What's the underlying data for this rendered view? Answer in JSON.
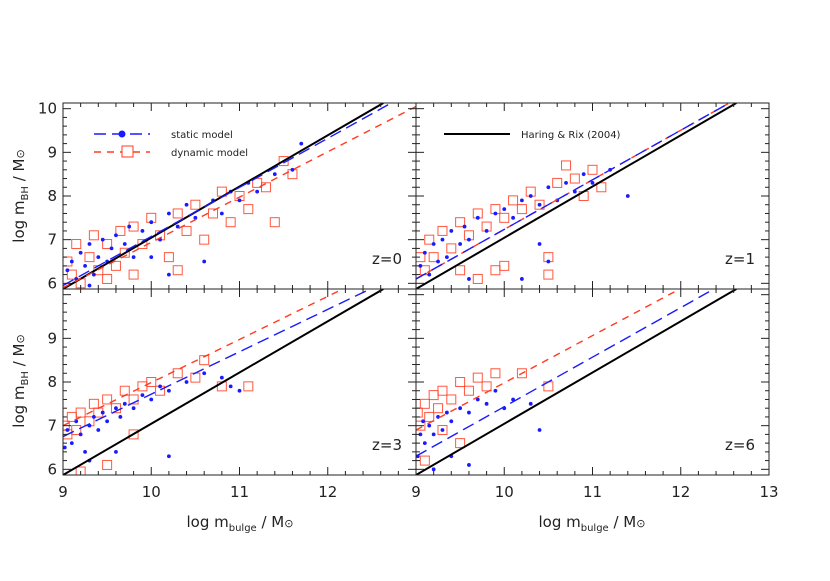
{
  "chart_data": {
    "type": "scatter",
    "xlabel": {
      "main": "log m",
      "sub": "bulge",
      "tail": " / M",
      "sun": "⊙"
    },
    "ylabel": {
      "main": "log m",
      "sub": "BH",
      "tail": " / M",
      "sun": "⊙"
    },
    "xlim": [
      9,
      13
    ],
    "ylim": [
      5.87,
      10.13
    ],
    "x_ticks": [
      9,
      10,
      11,
      12,
      13
    ],
    "y_ticks": [
      6,
      7,
      8,
      9,
      10
    ],
    "grid": false,
    "colors": {
      "static": "#1a1aff",
      "dynamic": "#ff3b1f",
      "reference": "#000000"
    },
    "legend": {
      "static": "static model",
      "dynamic": "dynamic model",
      "reference": "Haring & Rix (2004)"
    },
    "reference_line": {
      "x": [
        9,
        12.63
      ],
      "y": [
        5.87,
        10.13
      ]
    },
    "panels": [
      {
        "label": "z=0",
        "static_fit": {
          "x": [
            9,
            12.72
          ],
          "y": [
            5.95,
            10.13
          ]
        },
        "dynamic_fit": {
          "x": [
            9,
            13.0
          ],
          "y": [
            5.9,
            10.05
          ]
        },
        "static": [
          [
            9.05,
            6.3
          ],
          [
            9.1,
            6.5
          ],
          [
            9.15,
            6.1
          ],
          [
            9.2,
            6.7
          ],
          [
            9.25,
            6.4
          ],
          [
            9.3,
            6.9
          ],
          [
            9.35,
            6.2
          ],
          [
            9.4,
            6.6
          ],
          [
            9.45,
            7.0
          ],
          [
            9.5,
            6.5
          ],
          [
            9.55,
            6.8
          ],
          [
            9.6,
            7.1
          ],
          [
            9.7,
            6.9
          ],
          [
            9.75,
            7.3
          ],
          [
            9.8,
            6.6
          ],
          [
            9.9,
            7.2
          ],
          [
            10.0,
            7.4
          ],
          [
            10.1,
            7.0
          ],
          [
            10.2,
            7.6
          ],
          [
            10.3,
            7.3
          ],
          [
            10.4,
            7.8
          ],
          [
            10.5,
            7.5
          ],
          [
            10.6,
            6.5
          ],
          [
            10.7,
            7.9
          ],
          [
            10.8,
            7.6
          ],
          [
            10.9,
            8.1
          ],
          [
            11.0,
            7.9
          ],
          [
            11.1,
            8.3
          ],
          [
            11.2,
            8.1
          ],
          [
            11.4,
            8.5
          ],
          [
            11.6,
            8.6
          ],
          [
            11.7,
            9.2
          ],
          [
            10.0,
            6.6
          ],
          [
            9.3,
            5.95
          ],
          [
            10.2,
            6.2
          ]
        ],
        "dynamic": [
          [
            9.05,
            6.5
          ],
          [
            9.1,
            6.2
          ],
          [
            9.15,
            6.9
          ],
          [
            9.2,
            6.0
          ],
          [
            9.3,
            6.6
          ],
          [
            9.35,
            7.1
          ],
          [
            9.4,
            6.3
          ],
          [
            9.5,
            6.9
          ],
          [
            9.6,
            6.4
          ],
          [
            9.65,
            7.2
          ],
          [
            9.7,
            6.7
          ],
          [
            9.8,
            7.3
          ],
          [
            9.9,
            6.9
          ],
          [
            10.0,
            7.5
          ],
          [
            10.1,
            7.1
          ],
          [
            10.2,
            6.6
          ],
          [
            10.3,
            7.6
          ],
          [
            10.4,
            7.2
          ],
          [
            10.5,
            7.8
          ],
          [
            10.6,
            7.0
          ],
          [
            10.7,
            7.6
          ],
          [
            10.8,
            8.1
          ],
          [
            10.9,
            7.4
          ],
          [
            11.0,
            8.0
          ],
          [
            11.1,
            7.7
          ],
          [
            11.2,
            8.3
          ],
          [
            11.3,
            8.2
          ],
          [
            11.4,
            7.4
          ],
          [
            11.5,
            8.8
          ],
          [
            11.6,
            8.5
          ],
          [
            9.8,
            6.2
          ],
          [
            10.3,
            6.3
          ],
          [
            9.5,
            6.1
          ]
        ]
      },
      {
        "label": "z=1",
        "static_fit": {
          "x": [
            9,
            12.55
          ],
          "y": [
            6.1,
            10.13
          ]
        },
        "dynamic_fit": {
          "x": [
            9,
            12.55
          ],
          "y": [
            6.1,
            10.13
          ]
        },
        "static": [
          [
            9.05,
            6.4
          ],
          [
            9.1,
            6.7
          ],
          [
            9.15,
            6.2
          ],
          [
            9.2,
            6.9
          ],
          [
            9.25,
            6.5
          ],
          [
            9.3,
            7.0
          ],
          [
            9.35,
            6.6
          ],
          [
            9.4,
            7.2
          ],
          [
            9.5,
            6.9
          ],
          [
            9.55,
            7.3
          ],
          [
            9.6,
            7.0
          ],
          [
            9.7,
            7.5
          ],
          [
            9.8,
            7.2
          ],
          [
            9.9,
            7.6
          ],
          [
            10.0,
            7.7
          ],
          [
            10.1,
            7.5
          ],
          [
            10.2,
            7.9
          ],
          [
            10.3,
            8.0
          ],
          [
            10.4,
            7.8
          ],
          [
            10.5,
            8.2
          ],
          [
            10.6,
            7.9
          ],
          [
            10.7,
            8.3
          ],
          [
            10.8,
            8.1
          ],
          [
            10.9,
            8.5
          ],
          [
            11.0,
            8.3
          ],
          [
            11.2,
            8.6
          ],
          [
            10.4,
            6.9
          ],
          [
            10.5,
            6.5
          ],
          [
            10.2,
            6.1
          ],
          [
            11.4,
            8.0
          ],
          [
            9.6,
            6.1
          ]
        ],
        "dynamic": [
          [
            9.05,
            6.6
          ],
          [
            9.1,
            6.3
          ],
          [
            9.15,
            7.0
          ],
          [
            9.2,
            6.6
          ],
          [
            9.3,
            7.2
          ],
          [
            9.4,
            6.8
          ],
          [
            9.5,
            7.4
          ],
          [
            9.6,
            7.1
          ],
          [
            9.7,
            7.6
          ],
          [
            9.8,
            7.3
          ],
          [
            9.9,
            7.7
          ],
          [
            10.0,
            7.5
          ],
          [
            10.1,
            7.9
          ],
          [
            10.2,
            7.7
          ],
          [
            10.3,
            8.1
          ],
          [
            10.4,
            7.8
          ],
          [
            10.6,
            8.3
          ],
          [
            10.7,
            8.7
          ],
          [
            10.8,
            8.4
          ],
          [
            10.9,
            8.0
          ],
          [
            11.0,
            8.6
          ],
          [
            11.1,
            8.2
          ],
          [
            10.0,
            6.4
          ],
          [
            9.9,
            6.3
          ],
          [
            10.5,
            6.6
          ],
          [
            10.5,
            6.2
          ],
          [
            9.7,
            6.1
          ],
          [
            9.5,
            6.3
          ]
        ]
      },
      {
        "label": "z=3",
        "static_fit": {
          "x": [
            9,
            12.45
          ],
          "y": [
            6.75,
            10.1
          ]
        },
        "dynamic_fit": {
          "x": [
            9,
            12.14
          ],
          "y": [
            7.0,
            10.1
          ]
        },
        "static": [
          [
            9.02,
            6.5
          ],
          [
            9.05,
            6.9
          ],
          [
            9.1,
            6.6
          ],
          [
            9.15,
            7.1
          ],
          [
            9.2,
            6.8
          ],
          [
            9.25,
            6.4
          ],
          [
            9.3,
            7.0
          ],
          [
            9.35,
            7.2
          ],
          [
            9.4,
            6.9
          ],
          [
            9.45,
            7.3
          ],
          [
            9.5,
            7.1
          ],
          [
            9.6,
            7.4
          ],
          [
            9.65,
            7.2
          ],
          [
            9.7,
            7.5
          ],
          [
            9.8,
            7.4
          ],
          [
            9.9,
            7.7
          ],
          [
            10.0,
            7.6
          ],
          [
            10.1,
            7.9
          ],
          [
            10.2,
            7.8
          ],
          [
            10.4,
            8.0
          ],
          [
            10.6,
            8.2
          ],
          [
            10.8,
            8.1
          ],
          [
            10.9,
            7.9
          ],
          [
            11.0,
            7.8
          ],
          [
            10.2,
            6.3
          ],
          [
            9.6,
            6.4
          ],
          [
            9.3,
            6.2
          ]
        ],
        "dynamic": [
          [
            9.02,
            7.0
          ],
          [
            9.05,
            6.8
          ],
          [
            9.1,
            7.2
          ],
          [
            9.15,
            6.9
          ],
          [
            9.2,
            7.3
          ],
          [
            9.3,
            7.1
          ],
          [
            9.35,
            7.5
          ],
          [
            9.4,
            7.3
          ],
          [
            9.5,
            7.6
          ],
          [
            9.6,
            7.4
          ],
          [
            9.7,
            7.8
          ],
          [
            9.8,
            7.6
          ],
          [
            9.9,
            7.9
          ],
          [
            10.0,
            8.0
          ],
          [
            10.1,
            7.8
          ],
          [
            10.3,
            8.2
          ],
          [
            10.5,
            8.1
          ],
          [
            10.6,
            8.5
          ],
          [
            10.8,
            7.9
          ],
          [
            11.1,
            7.9
          ],
          [
            9.8,
            6.8
          ],
          [
            9.5,
            6.1
          ],
          [
            9.2,
            5.95
          ]
        ]
      },
      {
        "label": "z=6",
        "static_fit": {
          "x": [
            9,
            12.35
          ],
          "y": [
            6.3,
            10.1
          ]
        },
        "dynamic_fit": {
          "x": [
            9,
            11.96
          ],
          "y": [
            6.9,
            10.1
          ]
        },
        "static": [
          [
            9.02,
            6.3
          ],
          [
            9.05,
            6.8
          ],
          [
            9.08,
            7.1
          ],
          [
            9.1,
            6.6
          ],
          [
            9.15,
            7.0
          ],
          [
            9.2,
            6.8
          ],
          [
            9.25,
            7.2
          ],
          [
            9.3,
            6.9
          ],
          [
            9.35,
            7.3
          ],
          [
            9.4,
            7.1
          ],
          [
            9.5,
            7.4
          ],
          [
            9.6,
            7.3
          ],
          [
            9.7,
            7.6
          ],
          [
            9.8,
            7.5
          ],
          [
            9.9,
            7.8
          ],
          [
            10.0,
            7.4
          ],
          [
            10.1,
            7.6
          ],
          [
            10.3,
            7.5
          ],
          [
            10.4,
            6.9
          ],
          [
            9.4,
            6.3
          ],
          [
            9.6,
            6.1
          ],
          [
            9.2,
            6.0
          ]
        ],
        "dynamic": [
          [
            9.02,
            7.3
          ],
          [
            9.05,
            7.0
          ],
          [
            9.1,
            7.5
          ],
          [
            9.15,
            7.2
          ],
          [
            9.2,
            7.7
          ],
          [
            9.25,
            7.4
          ],
          [
            9.3,
            7.8
          ],
          [
            9.4,
            7.6
          ],
          [
            9.5,
            8.0
          ],
          [
            9.6,
            7.8
          ],
          [
            9.7,
            8.1
          ],
          [
            9.8,
            7.9
          ],
          [
            9.9,
            8.2
          ],
          [
            10.2,
            8.2
          ],
          [
            10.5,
            7.9
          ],
          [
            9.3,
            6.9
          ],
          [
            9.5,
            6.6
          ],
          [
            9.1,
            6.2
          ]
        ]
      }
    ]
  }
}
